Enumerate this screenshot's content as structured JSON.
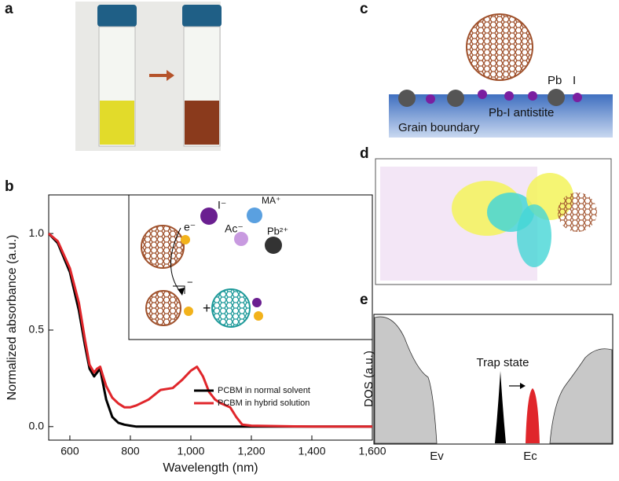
{
  "panel_labels": [
    "a",
    "b",
    "c",
    "d",
    "e"
  ],
  "chart_data": {
    "type": "line",
    "x_label": "Wavelength (nm)",
    "y_label": "Normalized absorbance (a.u.)",
    "x": [
      530,
      560,
      600,
      630,
      650,
      665,
      680,
      690,
      700,
      710,
      720,
      740,
      760,
      780,
      800,
      820,
      860,
      900,
      940,
      970,
      1000,
      1020,
      1040,
      1060,
      1080,
      1100,
      1130,
      1150,
      1170,
      1200,
      1400,
      1600
    ],
    "series": [
      {
        "name": "PCBM in normal solvent",
        "color": "#000000",
        "values": [
          1.0,
          0.95,
          0.8,
          0.6,
          0.42,
          0.3,
          0.26,
          0.28,
          0.3,
          0.22,
          0.14,
          0.05,
          0.02,
          0.01,
          0.005,
          0,
          0,
          0,
          0,
          0,
          0,
          0,
          0,
          0,
          0,
          0,
          0,
          0,
          0,
          0,
          0,
          0
        ]
      },
      {
        "name": "PCBM in hybrid solution",
        "color": "#e0262b",
        "values": [
          1.0,
          0.96,
          0.82,
          0.64,
          0.45,
          0.32,
          0.28,
          0.3,
          0.31,
          0.26,
          0.21,
          0.15,
          0.12,
          0.1,
          0.1,
          0.11,
          0.14,
          0.19,
          0.2,
          0.24,
          0.29,
          0.31,
          0.26,
          0.18,
          0.14,
          0.12,
          0.1,
          0.05,
          0.01,
          0.005,
          0,
          0
        ]
      }
    ],
    "xlim": [
      530,
      1600
    ],
    "ylim": [
      -0.07,
      1.2
    ],
    "xticks": [
      600,
      800,
      {
        "value": 1000,
        "label": "1,000"
      },
      {
        "value": 1200,
        "label": "1,200"
      },
      {
        "value": 1400,
        "label": "1,400"
      },
      {
        "value": 1600,
        "label": "1,600"
      }
    ],
    "yticks": [
      {
        "value": 0,
        "label": "0.0"
      },
      0.5,
      {
        "value": 1,
        "label": "1.0"
      }
    ]
  },
  "inset": {
    "iodide": "I⁻",
    "ma": "MA⁺",
    "acetate": "Ac⁻",
    "lead": "Pb²⁺",
    "electron": "e⁻",
    "charge": "−",
    "plus": "+"
  },
  "panel_c": {
    "pb": "Pb",
    "i": "I",
    "antisite": "Pb-I antistite",
    "boundary": "Grain boundary"
  },
  "panel_e": {
    "y_label": "DOS (a.u.)",
    "trap": "Trap state",
    "ev": "Ev",
    "ec": "Ec"
  }
}
